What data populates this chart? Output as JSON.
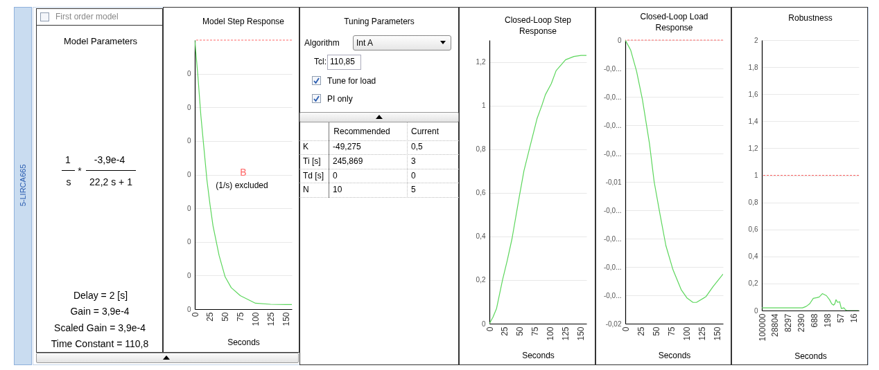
{
  "chart_data": [
    {
      "type": "other",
      "annotations": [
        "5-LIRCA665",
        "First order model",
        "Model Parameters",
        "1",
        "*",
        "-3,9e-4",
        "s",
        "22,2 s + 1",
        "Delay = 2 [s]",
        "Gain =  3,9e-4",
        "Scaled Gain =  3,9e-4",
        "Time Constant =  110,8"
      ]
    },
    {
      "type": "line",
      "title": "Model Step Response",
      "xlabel": "Seconds",
      "annotations": [
        "B",
        "(1/s) excluded"
      ],
      "x": [
        0,
        5,
        10,
        15,
        20,
        25,
        30,
        40,
        50,
        60,
        75,
        100,
        125,
        150,
        160
      ],
      "series": [
        {
          "color": "#5cd65c",
          "values": [
            0.0004,
            0.000348,
            0.000288,
            0.00024,
            0.000192,
            0.000156,
            0.000124,
            8e-05,
            4.8e-05,
            3.2e-05,
            2e-05,
            8.8e-06,
            7.2e-06,
            6.8e-06,
            6.8e-06
          ]
        }
      ],
      "xlim": [
        0,
        160
      ],
      "xticks": [
        0,
        25,
        50,
        75,
        100,
        125,
        150
      ],
      "ylim": [
        0,
        0.0004
      ],
      "yticks": [
        0,
        {
          "value": 5e-05,
          "label": "0"
        },
        {
          "value": 0.0001,
          "label": "0"
        },
        {
          "value": 0.00015,
          "label": "0"
        },
        {
          "value": 0.0002,
          "label": "0"
        },
        {
          "value": 0.00025,
          "label": "0"
        },
        {
          "value": 0.0003,
          "label": "0"
        },
        {
          "value": 0.00035,
          "label": "0"
        }
      ],
      "ref_lines": [
        {
          "axis": "y",
          "value": 0.0004,
          "color": "#ff6666",
          "line_style": "dashed"
        }
      ],
      "grid": "y"
    },
    {
      "type": "other",
      "annotations": [
        "Tuning Parameters",
        "Algorithm",
        "Int A",
        "Tcl:",
        "110,85",
        "Tune for load",
        "PI only",
        "Recommended",
        "Current",
        "K",
        "-49,275",
        "0,5",
        "Ti [s]",
        "245,869",
        "3",
        "Td [s]",
        "0",
        "0",
        "N",
        "10",
        "5"
      ]
    },
    {
      "type": "line",
      "title": "Closed-Loop Step Response",
      "xlabel": "Seconds",
      "x": [
        0,
        5.9,
        11.8,
        21.6,
        29.4,
        37.3,
        49.1,
        56.9,
        66.7,
        78.5,
        86.4,
        92.3,
        102,
        110,
        125.6,
        139.4,
        151.2,
        160
      ],
      "series": [
        {
          "color": "#5cd65c",
          "values": [
            0,
            0.03,
            0.07,
            0.2,
            0.29,
            0.39,
            0.58,
            0.7,
            0.81,
            0.94,
            1.0,
            1.05,
            1.1,
            1.16,
            1.21,
            1.225,
            1.23,
            1.23
          ]
        }
      ],
      "xlim": [
        0,
        160
      ],
      "xticks": [
        0,
        25,
        50,
        75,
        100,
        125,
        150
      ],
      "ylim": [
        0,
        1.3
      ],
      "yticks": [
        0,
        {
          "value": 0.2,
          "label": "0,2"
        },
        {
          "value": 0.4,
          "label": "0,4"
        },
        {
          "value": 0.6,
          "label": "0,6"
        },
        {
          "value": 0.8,
          "label": "0,8"
        },
        1,
        {
          "value": 1.2,
          "label": "1,2"
        }
      ],
      "grid": "y"
    },
    {
      "type": "line",
      "title": "Closed-Loop Load Response",
      "xlabel": "Seconds",
      "x": [
        0,
        8.8,
        18.5,
        28.1,
        39.6,
        47.3,
        56.9,
        66.5,
        78.1,
        91.5,
        101.2,
        110.8,
        116.5,
        131.9,
        143.5,
        160
      ],
      "series": [
        {
          "color": "#5cd65c",
          "values": [
            0,
            -0.0007,
            -0.0022,
            -0.0042,
            -0.0073,
            -0.01,
            -0.0123,
            -0.0145,
            -0.0162,
            -0.0176,
            -0.0182,
            -0.0185,
            -0.0185,
            -0.0181,
            -0.0174,
            -0.0165
          ]
        }
      ],
      "xlim": [
        0,
        160
      ],
      "xticks": [
        0,
        25,
        50,
        75,
        100,
        125,
        150
      ],
      "ylim": [
        -0.02,
        0
      ],
      "yticks": [
        0,
        {
          "value": -0.002,
          "label": "-0,0..."
        },
        {
          "value": -0.004,
          "label": "-0,0..."
        },
        {
          "value": -0.006,
          "label": "-0,0..."
        },
        {
          "value": -0.008,
          "label": "-0,0..."
        },
        {
          "value": -0.01,
          "label": "-0,01"
        },
        {
          "value": -0.012,
          "label": "-0,0..."
        },
        {
          "value": -0.014,
          "label": "-0,0..."
        },
        {
          "value": -0.016,
          "label": "-0,0..."
        },
        {
          "value": -0.018,
          "label": "-0,0..."
        },
        {
          "value": -0.02,
          "label": "-0,02"
        }
      ],
      "ref_lines": [
        {
          "axis": "y",
          "value": 0,
          "color": "#ff6666",
          "line_style": "dashed"
        }
      ],
      "grid": "y"
    },
    {
      "type": "line",
      "title": "Robustness",
      "xlabel": "Seconds",
      "log": "x",
      "x": [
        100000,
        2109,
        1500,
        1067,
        759,
        540,
        430,
        320,
        218,
        162,
        132,
        110,
        98,
        88,
        75,
        62,
        53,
        41.5,
        35.4,
        31.6,
        10.2
      ],
      "series": [
        {
          "color": "#5cd65c",
          "values": [
            0.02,
            0.02,
            0.03,
            0.05,
            0.09,
            0.095,
            0.1,
            0.125,
            0.11,
            0.08,
            0.05,
            0.04,
            0.05,
            0.08,
            0.06,
            0.065,
            0.015,
            0.02,
            0.005,
            0,
            0
          ]
        }
      ],
      "xlim": [
        100000,
        10
      ],
      "xticks": [
        100000,
        28804,
        8297,
        2390,
        688,
        198,
        57,
        16
      ],
      "ylim": [
        0,
        2
      ],
      "yticks": [
        0,
        {
          "value": 0.2,
          "label": "0,2"
        },
        {
          "value": 0.4,
          "label": "0,4"
        },
        {
          "value": 0.6,
          "label": "0,6"
        },
        {
          "value": 0.8,
          "label": "0,8"
        },
        1,
        {
          "value": 1.2,
          "label": "1,2"
        },
        {
          "value": 1.4,
          "label": "1,4"
        },
        {
          "value": 1.6,
          "label": "1,6"
        },
        {
          "value": 1.8,
          "label": "1,8"
        },
        2
      ],
      "ref_lines": [
        {
          "axis": "y",
          "value": 1,
          "color": "#ff6666",
          "line_style": "dashed"
        }
      ],
      "grid": "y"
    }
  ]
}
